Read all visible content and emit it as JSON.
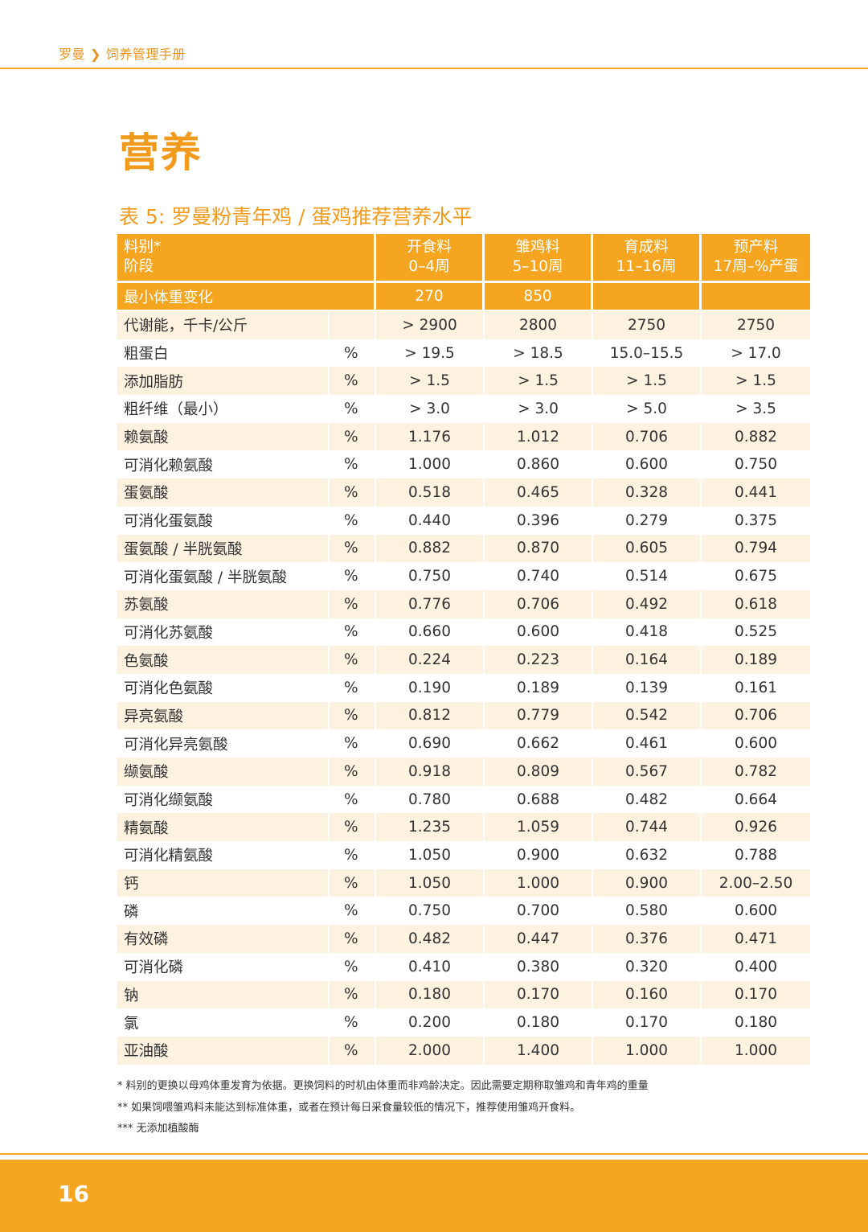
{
  "header": {
    "brand": "罗曼",
    "separator": "❯",
    "section": "饲养管理手册"
  },
  "page_title": "营养",
  "table_title": "表 5: 罗曼粉青年鸡 / 蛋鸡推荐营养水平",
  "table": {
    "head_first": [
      "料别*",
      "阶段"
    ],
    "columns": [
      {
        "name": "开食料",
        "stage": "0–4周"
      },
      {
        "name": "雏鸡料",
        "stage": "5–10周"
      },
      {
        "name": "育成料",
        "stage": "11–16周"
      },
      {
        "name": "预产料",
        "stage": "17周–%产蛋"
      }
    ],
    "min_weight": {
      "label": "最小体重变化",
      "values": [
        "270",
        "850",
        "",
        ""
      ]
    },
    "rows": [
      {
        "name": "代谢能，千卡/公斤",
        "unit": "",
        "values": [
          "> 2900",
          "2800",
          "2750",
          "2750"
        ]
      },
      {
        "name": "粗蛋白",
        "unit": "%",
        "values": [
          "> 19.5",
          "> 18.5",
          "15.0–15.5",
          "> 17.0"
        ]
      },
      {
        "name": "添加脂肪",
        "unit": "%",
        "values": [
          "> 1.5",
          "> 1.5",
          "> 1.5",
          "> 1.5"
        ]
      },
      {
        "name": "粗纤维（最小）",
        "unit": "%",
        "values": [
          "> 3.0",
          "> 3.0",
          "> 5.0",
          "> 3.5"
        ]
      },
      {
        "name": "赖氨酸",
        "unit": "%",
        "values": [
          "1.176",
          "1.012",
          "0.706",
          "0.882"
        ]
      },
      {
        "name": "可消化赖氨酸",
        "unit": "%",
        "values": [
          "1.000",
          "0.860",
          "0.600",
          "0.750"
        ]
      },
      {
        "name": "蛋氨酸",
        "unit": "%",
        "values": [
          "0.518",
          "0.465",
          "0.328",
          "0.441"
        ]
      },
      {
        "name": "可消化蛋氨酸",
        "unit": "%",
        "values": [
          "0.440",
          "0.396",
          "0.279",
          "0.375"
        ]
      },
      {
        "name": "蛋氨酸 / 半胱氨酸",
        "unit": "%",
        "values": [
          "0.882",
          "0.870",
          "0.605",
          "0.794"
        ]
      },
      {
        "name": "可消化蛋氨酸 / 半胱氨酸",
        "unit": "%",
        "values": [
          "0.750",
          "0.740",
          "0.514",
          "0.675"
        ]
      },
      {
        "name": "苏氨酸",
        "unit": "%",
        "values": [
          "0.776",
          "0.706",
          "0.492",
          "0.618"
        ]
      },
      {
        "name": "可消化苏氨酸",
        "unit": "%",
        "values": [
          "0.660",
          "0.600",
          "0.418",
          "0.525"
        ]
      },
      {
        "name": "色氨酸",
        "unit": "%",
        "values": [
          "0.224",
          "0.223",
          "0.164",
          "0.189"
        ]
      },
      {
        "name": "可消化色氨酸",
        "unit": "%",
        "values": [
          "0.190",
          "0.189",
          "0.139",
          "0.161"
        ]
      },
      {
        "name": "异亮氨酸",
        "unit": "%",
        "values": [
          "0.812",
          "0.779",
          "0.542",
          "0.706"
        ]
      },
      {
        "name": "可消化异亮氨酸",
        "unit": "%",
        "values": [
          "0.690",
          "0.662",
          "0.461",
          "0.600"
        ]
      },
      {
        "name": "缬氨酸",
        "unit": "%",
        "values": [
          "0.918",
          "0.809",
          "0.567",
          "0.782"
        ]
      },
      {
        "name": "可消化缬氨酸",
        "unit": "%",
        "values": [
          "0.780",
          "0.688",
          "0.482",
          "0.664"
        ]
      },
      {
        "name": "精氨酸",
        "unit": "%",
        "values": [
          "1.235",
          "1.059",
          "0.744",
          "0.926"
        ]
      },
      {
        "name": "可消化精氨酸",
        "unit": "%",
        "values": [
          "1.050",
          "0.900",
          "0.632",
          "0.788"
        ]
      },
      {
        "name": "钙",
        "unit": "%",
        "values": [
          "1.050",
          "1.000",
          "0.900",
          "2.00–2.50"
        ]
      },
      {
        "name": "磷",
        "unit": "%",
        "values": [
          "0.750",
          "0.700",
          "0.580",
          "0.600"
        ]
      },
      {
        "name": "有效磷",
        "unit": "%",
        "values": [
          "0.482",
          "0.447",
          "0.376",
          "0.471"
        ]
      },
      {
        "name": "可消化磷",
        "unit": "%",
        "values": [
          "0.410",
          "0.380",
          "0.320",
          "0.400"
        ]
      },
      {
        "name": "钠",
        "unit": "%",
        "values": [
          "0.180",
          "0.170",
          "0.160",
          "0.170"
        ]
      },
      {
        "name": "氯",
        "unit": "%",
        "values": [
          "0.200",
          "0.180",
          "0.170",
          "0.180"
        ]
      },
      {
        "name": "亚油酸",
        "unit": "%",
        "values": [
          "2.000",
          "1.400",
          "1.000",
          "1.000"
        ]
      }
    ]
  },
  "footnotes": [
    "* 料别的更换以母鸡体重发育为依据。更换饲料的时机由体重而非鸡龄决定。因此需要定期称取雏鸡和青年鸡的重量",
    "** 如果饲喂雏鸡料未能达到标准体重，或者在预计每日采食量较低的情况下，推荐使用雏鸡开食料。",
    "*** 无添加植酸酶"
  ],
  "page_number": "16",
  "colors": {
    "accent": "#f5a51f",
    "stripe": "#fdf1df"
  }
}
